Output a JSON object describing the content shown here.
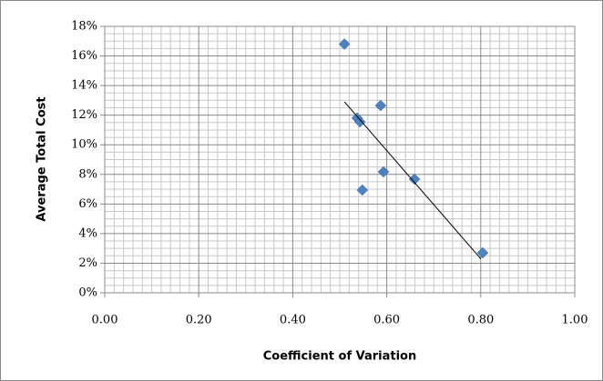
{
  "chart_data": {
    "type": "scatter",
    "xlabel": "Coefficient of Variation",
    "ylabel": "Average Total Cost",
    "series": [
      {
        "color": "#4f81bd",
        "x": [
          0.51,
          0.587,
          0.537,
          0.543,
          0.593,
          0.659,
          0.548,
          0.804
        ],
        "values": [
          16.8,
          12.65,
          11.8,
          11.55,
          8.17,
          7.68,
          6.94,
          2.7
        ]
      }
    ],
    "trendline": {
      "color": "#000000",
      "x": [
        0.51,
        0.8
      ],
      "y": [
        12.9,
        2.3
      ]
    },
    "xlim": [
      0,
      1
    ],
    "ylim": [
      0,
      18
    ],
    "xticks": [
      {
        "value": 0,
        "label": "0.00"
      },
      {
        "value": 0.2,
        "label": "0.20"
      },
      {
        "value": 0.4,
        "label": "0.40"
      },
      {
        "value": 0.6,
        "label": "0.60"
      },
      {
        "value": 0.8,
        "label": "0.80"
      },
      {
        "value": 1,
        "label": "1.00"
      }
    ],
    "yticks": [
      {
        "value": 0,
        "label": "0%"
      },
      {
        "value": 2,
        "label": "2%"
      },
      {
        "value": 4,
        "label": "4%"
      },
      {
        "value": 6,
        "label": "6%"
      },
      {
        "value": 8,
        "label": "8%"
      },
      {
        "value": 10,
        "label": "10%"
      },
      {
        "value": 12,
        "label": "12%"
      },
      {
        "value": 14,
        "label": "14%"
      },
      {
        "value": 16,
        "label": "16%"
      },
      {
        "value": 18,
        "label": "18%"
      }
    ],
    "grid": true
  }
}
